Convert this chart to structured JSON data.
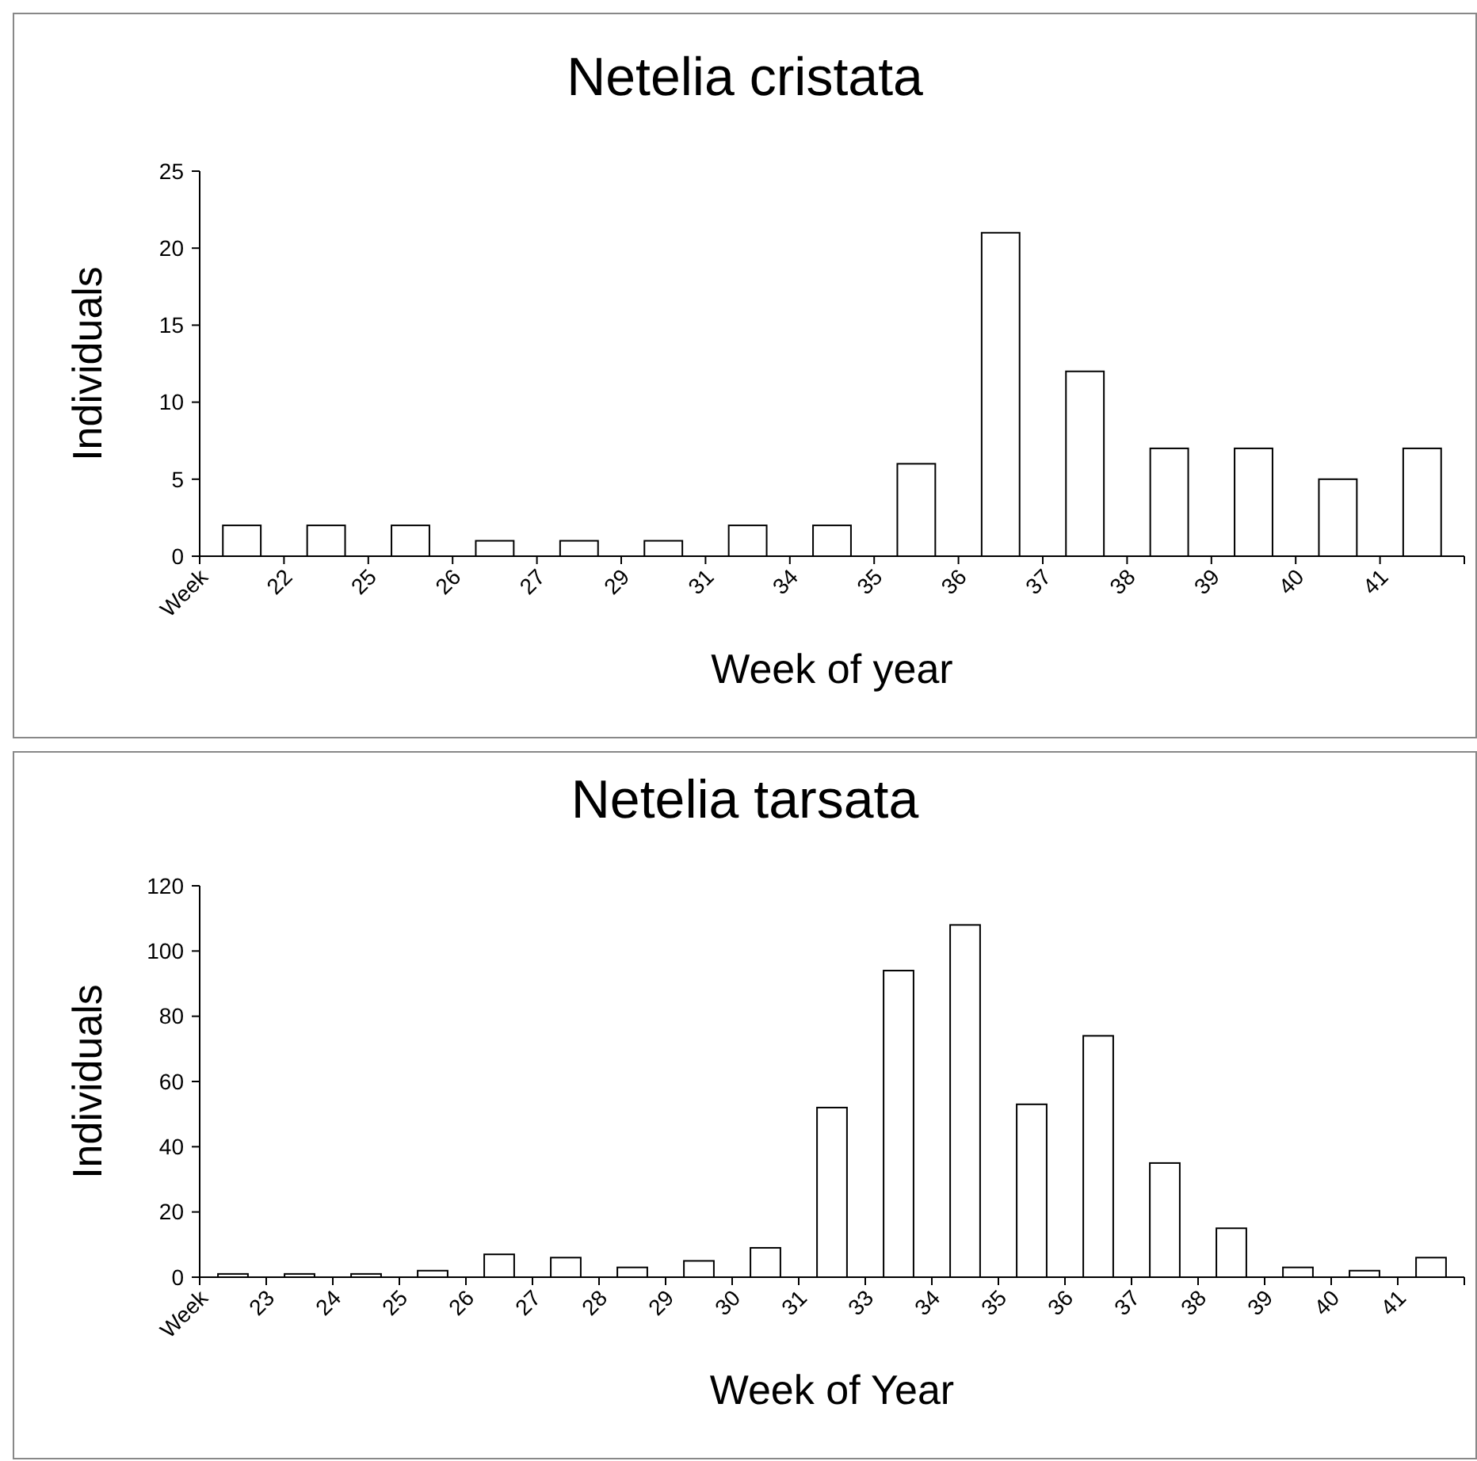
{
  "chart_data": [
    {
      "type": "bar",
      "title": "Netelia cristata",
      "xlabel": "Week of year",
      "ylabel": "Individuals",
      "categories": [
        "Week",
        "22",
        "25",
        "26",
        "27",
        "29",
        "31",
        "34",
        "35",
        "36",
        "37",
        "38",
        "39",
        "40",
        "41"
      ],
      "values": [
        2,
        2,
        2,
        1,
        1,
        1,
        2,
        2,
        6,
        21,
        12,
        7,
        7,
        5,
        7
      ],
      "color": "#ffffff",
      "ylim": [
        0,
        25
      ],
      "yticks": [
        0,
        5,
        10,
        15,
        20,
        25
      ]
    },
    {
      "type": "bar",
      "title": "Netelia tarsata",
      "xlabel": "Week of Year",
      "ylabel": "Individuals",
      "categories": [
        "Week",
        "23",
        "24",
        "25",
        "26",
        "27",
        "28",
        "29",
        "30",
        "31",
        "33",
        "34",
        "35",
        "36",
        "37",
        "38",
        "39",
        "40",
        "41"
      ],
      "values": [
        1,
        1,
        1,
        2,
        7,
        6,
        3,
        5,
        9,
        52,
        94,
        108,
        53,
        74,
        35,
        15,
        3,
        2,
        6
      ],
      "color": "#ffffff",
      "ylim": [
        0,
        120
      ],
      "yticks": [
        0,
        20,
        40,
        60,
        80,
        100,
        120
      ]
    }
  ]
}
